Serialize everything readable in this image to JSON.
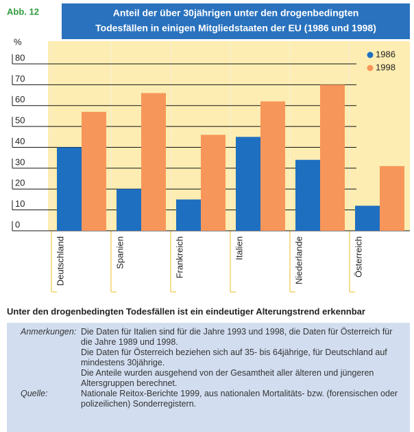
{
  "chart_data": {
    "type": "bar",
    "figure_label": "Abb. 12",
    "title": [
      "Anteil der über 30jährigen unter den drogenbedingten",
      "Todesfällen in einigen Mitgliedstaaten der EU (1986 und 1998)"
    ],
    "y_unit": "%",
    "categories": [
      "Deutschland",
      "Spanien",
      "Frankreich",
      "Italien",
      "Niederlande",
      "Österreich"
    ],
    "series": [
      {
        "name": "1986",
        "color": "#1f6fc0",
        "values": [
          40,
          20,
          15,
          45,
          34,
          12
        ]
      },
      {
        "name": "1998",
        "color": "#f7965a",
        "values": [
          57,
          66,
          46,
          62,
          70,
          31
        ]
      }
    ],
    "ylim": [
      0,
      80
    ],
    "yticks": [
      0,
      10,
      20,
      30,
      40,
      50,
      60,
      70,
      80
    ],
    "grid": true,
    "legend": "upper right"
  },
  "caption": "Unter den drogenbedingten Todesfällen ist ein eindeutiger Alterungstrend erkennbar",
  "notes": {
    "label": "Anmerkungen:",
    "paragraphs": [
      "Die Daten für Italien sind für die Jahre 1993 und 1998, die Daten für Österreich für die Jahre 1989 und 1998.",
      "Die Daten für Österreich beziehen sich auf 35- bis 64jährige, für Deutschland auf mindestens 30jährige.",
      "Die Anteile wurden ausgehend von der Gesamtheit aller älteren und jüngeren Altersgruppen berechnet."
    ]
  },
  "source": {
    "label": "Quelle:",
    "paragraphs": [
      "Nationale Reitox-Berichte 1999, aus nationalen Mortalitäts- bzw. (forensischen oder polizeilichen) Sonderregistern."
    ]
  }
}
